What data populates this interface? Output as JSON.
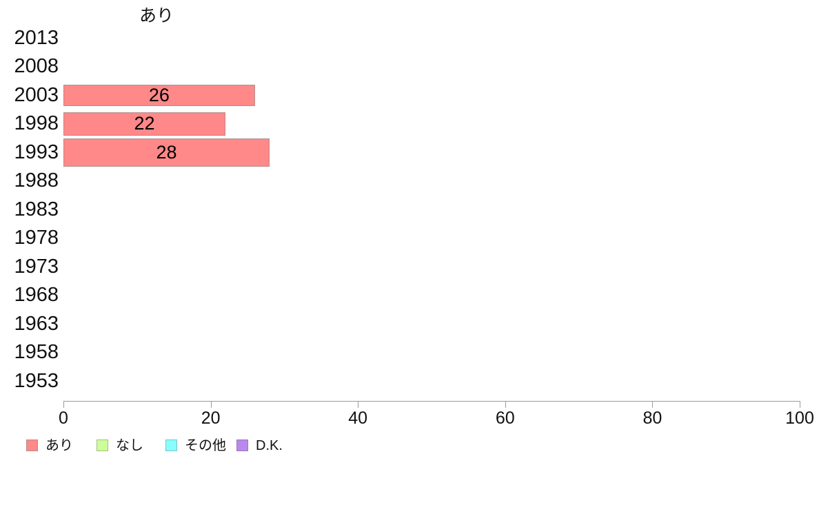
{
  "chart_data": {
    "type": "bar",
    "orientation": "horizontal",
    "title": "あり",
    "categories": [
      "2013",
      "2008",
      "2003",
      "1998",
      "1993",
      "1988",
      "1983",
      "1978",
      "1973",
      "1968",
      "1963",
      "1958",
      "1953"
    ],
    "series": [
      {
        "name": "あり",
        "color": "#ff8888",
        "border_color": "#b38d8d",
        "values": [
          null,
          null,
          26,
          22,
          28,
          null,
          null,
          null,
          null,
          null,
          null,
          null,
          null
        ]
      },
      {
        "name": "なし",
        "color": "#ccff99",
        "border_color": "#a2bf7c",
        "values": [
          null,
          null,
          null,
          null,
          null,
          null,
          null,
          null,
          null,
          null,
          null,
          null,
          null
        ]
      },
      {
        "name": "その他",
        "color": "#88ffff",
        "border_color": "#84bfbf",
        "values": [
          null,
          null,
          null,
          null,
          null,
          null,
          null,
          null,
          null,
          null,
          null,
          null,
          null
        ]
      },
      {
        "name": "D.K.",
        "color": "#bb88ee",
        "border_color": "#927bb4",
        "values": [
          null,
          null,
          null,
          null,
          null,
          null,
          null,
          null,
          null,
          null,
          null,
          null,
          null
        ]
      }
    ],
    "bar_value_labels": [
      "26",
      "22",
      "28"
    ],
    "xlim": [
      0,
      100
    ],
    "xticks": [
      0,
      20,
      40,
      60,
      80,
      100
    ],
    "xlabel": "",
    "ylabel": "",
    "grid": false,
    "legend_position": "bottom",
    "axis_color": "#9a9a9a",
    "text_color": "#111111",
    "background_color": "#ffffff"
  }
}
